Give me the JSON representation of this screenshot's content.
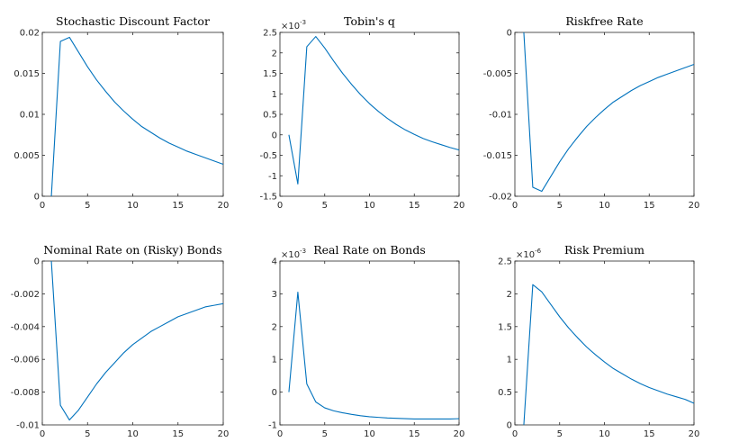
{
  "colors": {
    "series": "#0072BD",
    "axis": "#262626",
    "background": "#ffffff"
  },
  "chart_data": [
    {
      "type": "line",
      "title": "Stochastic Discount Factor",
      "exponent": "",
      "xlim": [
        0,
        20
      ],
      "ylim": [
        0,
        0.02
      ],
      "xticks": [
        0,
        5,
        10,
        15,
        20
      ],
      "yticks": [
        0,
        0.005,
        0.01,
        0.015,
        0.02
      ],
      "yticklabels": [
        "0",
        "0.005",
        "0.01",
        "0.015",
        "0.02"
      ],
      "x": [
        1,
        2,
        3,
        4,
        5,
        6,
        7,
        8,
        9,
        10,
        11,
        12,
        13,
        14,
        15,
        16,
        17,
        18,
        19,
        20
      ],
      "series": [
        {
          "values": [
            0.0,
            0.0189,
            0.0194,
            0.0176,
            0.0158,
            0.0142,
            0.0128,
            0.0115,
            0.0104,
            0.0094,
            0.0085,
            0.0078,
            0.0071,
            0.0065,
            0.006,
            0.0055,
            0.0051,
            0.0047,
            0.0043,
            0.0039
          ]
        }
      ]
    },
    {
      "type": "line",
      "title": "Tobin's q",
      "exponent": "-3",
      "xlim": [
        0,
        20
      ],
      "ylim": [
        -1.5,
        2.5
      ],
      "xticks": [
        0,
        5,
        10,
        15,
        20
      ],
      "yticks": [
        -1.5,
        -1,
        -0.5,
        0,
        0.5,
        1,
        1.5,
        2,
        2.5
      ],
      "yticklabels": [
        "-1.5",
        "-1",
        "-0.5",
        "0",
        "0.5",
        "1",
        "1.5",
        "2",
        "2.5"
      ],
      "x": [
        1,
        2,
        3,
        4,
        5,
        6,
        7,
        8,
        9,
        10,
        11,
        12,
        13,
        14,
        15,
        16,
        17,
        18,
        19,
        20
      ],
      "series": [
        {
          "values": [
            0.0,
            -1.2,
            2.15,
            2.4,
            2.12,
            1.8,
            1.5,
            1.23,
            0.98,
            0.76,
            0.57,
            0.4,
            0.25,
            0.12,
            0.01,
            -0.09,
            -0.17,
            -0.24,
            -0.31,
            -0.37
          ]
        }
      ]
    },
    {
      "type": "line",
      "title": "Riskfree Rate",
      "exponent": "",
      "xlim": [
        0,
        20
      ],
      "ylim": [
        -0.02,
        0
      ],
      "xticks": [
        0,
        5,
        10,
        15,
        20
      ],
      "yticks": [
        -0.02,
        -0.015,
        -0.01,
        -0.005,
        0
      ],
      "yticklabels": [
        "-0.02",
        "-0.015",
        "-0.01",
        "-0.005",
        "0"
      ],
      "x": [
        1,
        2,
        3,
        4,
        5,
        6,
        7,
        8,
        9,
        10,
        11,
        12,
        13,
        14,
        15,
        16,
        17,
        18,
        19,
        20
      ],
      "series": [
        {
          "values": [
            0.0,
            -0.0189,
            -0.0194,
            -0.0176,
            -0.0158,
            -0.0142,
            -0.0128,
            -0.0115,
            -0.0104,
            -0.0094,
            -0.0085,
            -0.0078,
            -0.0071,
            -0.0065,
            -0.006,
            -0.0055,
            -0.0051,
            -0.0047,
            -0.0043,
            -0.0039
          ]
        }
      ]
    },
    {
      "type": "line",
      "title": "Nominal Rate on (Risky) Bonds",
      "exponent": "",
      "xlim": [
        0,
        20
      ],
      "ylim": [
        -0.01,
        0
      ],
      "xticks": [
        0,
        5,
        10,
        15,
        20
      ],
      "yticks": [
        -0.01,
        -0.008,
        -0.006,
        -0.004,
        -0.002,
        0
      ],
      "yticklabels": [
        "-0.01",
        "-0.008",
        "-0.006",
        "-0.004",
        "-0.002",
        "0"
      ],
      "x": [
        1,
        2,
        3,
        4,
        5,
        6,
        7,
        8,
        9,
        10,
        11,
        12,
        13,
        14,
        15,
        16,
        17,
        18,
        19,
        20
      ],
      "series": [
        {
          "values": [
            0.0,
            -0.0088,
            -0.0097,
            -0.0091,
            -0.0083,
            -0.0075,
            -0.0068,
            -0.0062,
            -0.0056,
            -0.0051,
            -0.0047,
            -0.0043,
            -0.004,
            -0.0037,
            -0.0034,
            -0.0032,
            -0.003,
            -0.0028,
            -0.0027,
            -0.0026
          ]
        }
      ]
    },
    {
      "type": "line",
      "title": "Real Rate on Bonds",
      "exponent": "-3",
      "xlim": [
        0,
        20
      ],
      "ylim": [
        -1,
        4
      ],
      "xticks": [
        0,
        5,
        10,
        15,
        20
      ],
      "yticks": [
        -1,
        0,
        1,
        2,
        3,
        4
      ],
      "yticklabels": [
        "-1",
        "0",
        "1",
        "2",
        "3",
        "4"
      ],
      "x": [
        1,
        2,
        3,
        4,
        5,
        6,
        7,
        8,
        9,
        10,
        11,
        12,
        13,
        14,
        15,
        16,
        17,
        18,
        19,
        20
      ],
      "series": [
        {
          "values": [
            0.0,
            3.05,
            0.25,
            -0.3,
            -0.48,
            -0.57,
            -0.63,
            -0.68,
            -0.72,
            -0.75,
            -0.77,
            -0.79,
            -0.8,
            -0.81,
            -0.82,
            -0.82,
            -0.82,
            -0.82,
            -0.82,
            -0.81
          ]
        }
      ]
    },
    {
      "type": "line",
      "title": "Risk Premium",
      "exponent": "-6",
      "xlim": [
        0,
        20
      ],
      "ylim": [
        0,
        2.5
      ],
      "xticks": [
        0,
        5,
        10,
        15,
        20
      ],
      "yticks": [
        0,
        0.5,
        1,
        1.5,
        2,
        2.5
      ],
      "yticklabels": [
        "0",
        "0.5",
        "1",
        "1.5",
        "2",
        "2.5"
      ],
      "x": [
        1,
        2,
        3,
        4,
        5,
        6,
        7,
        8,
        9,
        10,
        11,
        12,
        13,
        14,
        15,
        16,
        17,
        18,
        19,
        20
      ],
      "series": [
        {
          "values": [
            0.0,
            2.14,
            2.03,
            1.84,
            1.65,
            1.48,
            1.33,
            1.19,
            1.07,
            0.96,
            0.86,
            0.78,
            0.7,
            0.63,
            0.57,
            0.52,
            0.47,
            0.43,
            0.39,
            0.33
          ]
        }
      ]
    }
  ]
}
